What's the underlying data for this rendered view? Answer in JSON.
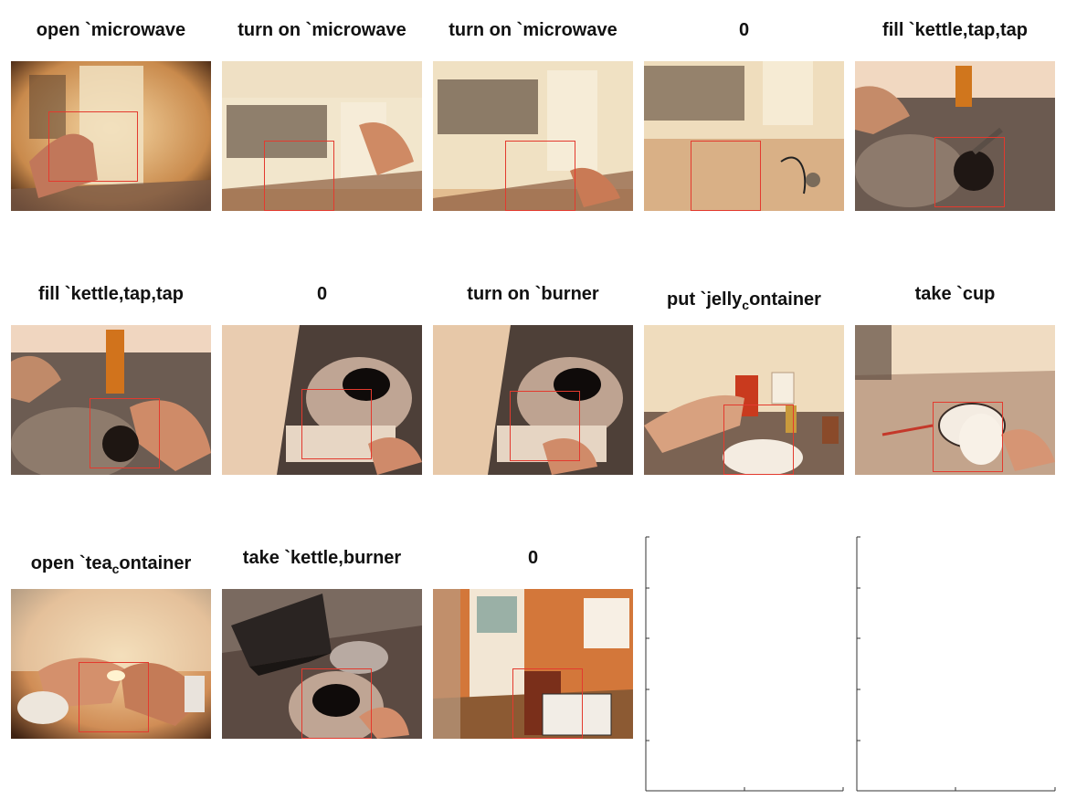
{
  "tiles": [
    {
      "title": "open `microwave",
      "scene": "microwave-panel"
    },
    {
      "title": "turn on `microwave",
      "scene": "microwave-door"
    },
    {
      "title": "turn on `microwave",
      "scene": "microwave-door"
    },
    {
      "title": "0",
      "scene": "microwave-counter"
    },
    {
      "title": "fill `kettle,tap,tap",
      "scene": "sink"
    },
    {
      "title": "fill `kettle,tap,tap",
      "scene": "sink"
    },
    {
      "title": "0",
      "scene": "stove-kettle"
    },
    {
      "title": "turn on `burner",
      "scene": "stove-kettle"
    },
    {
      "title_main": "put `jelly",
      "title_sub": "c",
      "title_rest": "ontainer",
      "scene": "counter-jar"
    },
    {
      "title": "take `cup",
      "scene": "counter-cup"
    },
    {
      "title_main": "open `tea",
      "title_sub": "c",
      "title_rest": "ontainer",
      "scene": "tea-hands"
    },
    {
      "title": "take `kettle,burner",
      "scene": "laptop-kettle"
    },
    {
      "title": "0",
      "scene": "doorway"
    }
  ],
  "colors": {
    "bbox": "#e33a2e",
    "tint": "#c8742e"
  }
}
